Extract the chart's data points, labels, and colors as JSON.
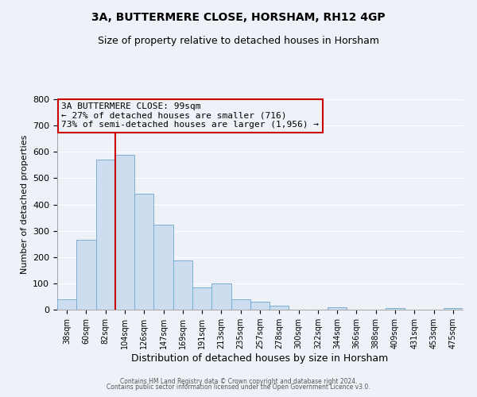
{
  "title": "3A, BUTTERMERE CLOSE, HORSHAM, RH12 4GP",
  "subtitle": "Size of property relative to detached houses in Horsham",
  "xlabel": "Distribution of detached houses by size in Horsham",
  "ylabel": "Number of detached properties",
  "bar_labels": [
    "38sqm",
    "60sqm",
    "82sqm",
    "104sqm",
    "126sqm",
    "147sqm",
    "169sqm",
    "191sqm",
    "213sqm",
    "235sqm",
    "257sqm",
    "278sqm",
    "300sqm",
    "322sqm",
    "344sqm",
    "366sqm",
    "388sqm",
    "409sqm",
    "431sqm",
    "453sqm",
    "475sqm"
  ],
  "bar_values": [
    38,
    265,
    572,
    590,
    440,
    323,
    186,
    84,
    100,
    38,
    30,
    14,
    0,
    0,
    10,
    0,
    0,
    6,
    0,
    0,
    6
  ],
  "bar_color": "#ccddf0",
  "bar_edge_color": "#7bafd4",
  "vline_x_index": 3,
  "vline_color": "#cc0000",
  "annotation_line1": "3A BUTTERMERE CLOSE: 99sqm",
  "annotation_line2": "← 27% of detached houses are smaller (716)",
  "annotation_line3": "73% of semi-detached houses are larger (1,956) →",
  "annotation_box_edge": "#cc0000",
  "ylim": [
    0,
    800
  ],
  "yticks": [
    0,
    100,
    200,
    300,
    400,
    500,
    600,
    700,
    800
  ],
  "footer1": "Contains HM Land Registry data © Crown copyright and database right 2024.",
  "footer2": "Contains public sector information licensed under the Open Government Licence v3.0.",
  "background_color": "#eef2f8",
  "grid_color": "#ffffff",
  "title_fontsize": 10,
  "subtitle_fontsize": 9,
  "ylabel_fontsize": 8,
  "xlabel_fontsize": 9
}
